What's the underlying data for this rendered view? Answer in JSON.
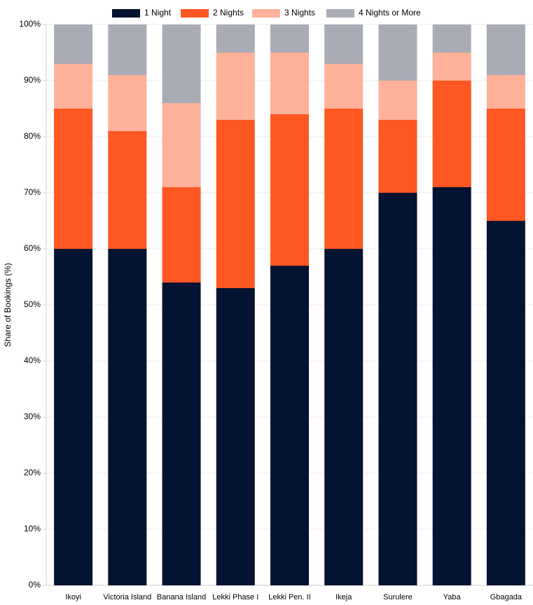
{
  "chart_data": {
    "type": "stacked_bar",
    "y_label": "Share of Bookings (%)",
    "categories": [
      "Ikoyi",
      "Victoria Island",
      "Banana Island",
      "Lekki Phase I",
      "Lekki Pen. II",
      "Ikeja",
      "Surulere",
      "Yaba",
      "Gbagada"
    ],
    "series": [
      {
        "name": "1 Night",
        "color": "#041331",
        "values": [
          60,
          60,
          54,
          53,
          57,
          60,
          70,
          71,
          65
        ]
      },
      {
        "name": "2 Nights",
        "color": "#ff5722",
        "values": [
          25,
          21,
          17,
          30,
          27,
          25,
          13,
          19,
          20
        ]
      },
      {
        "name": "3 Nights",
        "color": "#ffb199",
        "values": [
          8,
          10,
          15,
          12,
          11,
          8,
          7,
          5,
          6
        ]
      },
      {
        "name": "4 Nights or More",
        "color": "#a9abb5",
        "values": [
          7,
          9,
          14,
          5,
          5,
          7,
          10,
          5,
          9
        ]
      }
    ],
    "ylim": [
      0,
      100
    ],
    "yticks": [
      {
        "value": 0,
        "label": "0%"
      },
      {
        "value": 10,
        "label": "10%"
      },
      {
        "value": 20,
        "label": "20%"
      },
      {
        "value": 30,
        "label": "30%"
      },
      {
        "value": 40,
        "label": "40%"
      },
      {
        "value": 50,
        "label": "50%"
      },
      {
        "value": 60,
        "label": "60%"
      },
      {
        "value": 70,
        "label": "70%"
      },
      {
        "value": 80,
        "label": "80%"
      },
      {
        "value": 90,
        "label": "90%"
      },
      {
        "value": 100,
        "label": "100%"
      }
    ],
    "grid": true,
    "legend": "top"
  }
}
